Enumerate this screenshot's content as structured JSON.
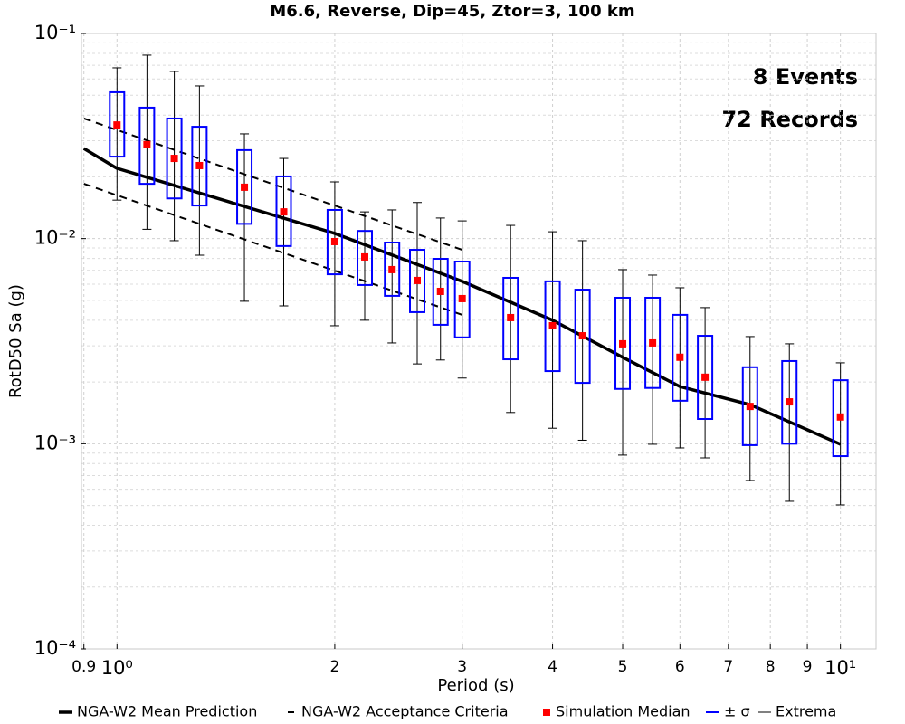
{
  "chart_data": {
    "type": "box",
    "title": "M6.6, Reverse, Dip=45, Ztor=3, 100 km",
    "xlabel": "Period (s)",
    "ylabel": "RotD50 Sa (g)",
    "xscale": "log",
    "yscale": "log",
    "grid": true,
    "xlim": [
      0.893,
      11.2
    ],
    "ylim": [
      0.0001,
      0.1
    ],
    "xticks": [
      0.9,
      {
        "value": 1,
        "label": "10⁰"
      },
      2,
      3,
      4,
      5,
      6,
      7,
      8,
      9,
      {
        "value": 10,
        "label": "10¹"
      }
    ],
    "xtick_labels_shown": [
      {
        "value": 0.9,
        "label": "9"
      }
    ],
    "yticks": [
      {
        "value": 0.1,
        "label": "10⁻¹"
      },
      {
        "value": 0.01,
        "label": "10⁻²"
      },
      {
        "value": 0.001,
        "label": "10⁻³"
      },
      {
        "value": 0.0001,
        "label": "10⁻⁴"
      }
    ],
    "yminorticks": [
      0.0002,
      0.0003,
      0.0004,
      0.0005,
      0.0006,
      0.0007,
      0.0008,
      0.0009,
      0.002,
      0.003,
      0.004,
      0.005,
      0.006,
      0.007,
      0.008,
      0.009,
      0.02,
      0.03,
      0.04,
      0.05,
      0.06,
      0.07,
      0.08,
      0.09
    ],
    "annotations": [
      "8 Events",
      "72 Records"
    ],
    "x": [
      1,
      1.1,
      1.2,
      1.3,
      1.5,
      1.7,
      2,
      2.2,
      2.4,
      2.6,
      2.8,
      3,
      3.5,
      4,
      4.4,
      5,
      5.5,
      6,
      6.5,
      7.5,
      8.5,
      10
    ],
    "series": [
      {
        "name": "NGA-W2 Mean Prediction",
        "color": "#000000",
        "x": [
          0.9,
          1,
          2,
          3,
          4,
          5,
          6,
          7.5,
          10
        ],
        "values": [
          0.0275,
          0.022,
          0.0106,
          0.00619,
          0.004,
          0.00264,
          0.0019,
          0.00155,
          0.000994
        ]
      },
      {
        "name": "NGA-W2 Acceptance Criteria",
        "color": "#000000",
        "x": [
          0.9,
          3
        ],
        "upper": [
          0.0385,
          0.00882
        ],
        "lower": [
          0.0185,
          0.00425
        ]
      },
      {
        "name": "Simulation Median",
        "color": "#ff0000",
        "values": [
          0.0358,
          0.0287,
          0.0246,
          0.0227,
          0.0178,
          0.0135,
          0.00967,
          0.00814,
          0.00706,
          0.00625,
          0.00553,
          0.0051,
          0.00412,
          0.00376,
          0.00336,
          0.00307,
          0.0031,
          0.00264,
          0.00211,
          0.00152,
          0.0016,
          0.00135
        ]
      },
      {
        "name": "± σ",
        "color": "#0000ff",
        "upper": [
          0.0517,
          0.0435,
          0.0385,
          0.0351,
          0.027,
          0.0201,
          0.0138,
          0.0109,
          0.00957,
          0.00882,
          0.00797,
          0.00773,
          0.00644,
          0.00619,
          0.00564,
          0.00515,
          0.00515,
          0.00425,
          0.00336,
          0.00236,
          0.00253,
          0.00204
        ],
        "lower": [
          0.0251,
          0.0185,
          0.0157,
          0.0145,
          0.0118,
          0.0092,
          0.0067,
          0.00594,
          0.00526,
          0.00438,
          0.0038,
          0.0033,
          0.00258,
          0.00226,
          0.00198,
          0.00185,
          0.00187,
          0.00162,
          0.00132,
          0.000984,
          0.001,
          0.00087
        ]
      },
      {
        "name": "Extrema",
        "color": "#000000",
        "upper": [
          0.068,
          0.0784,
          0.0653,
          0.0555,
          0.0324,
          0.0246,
          0.0189,
          0.0135,
          0.0138,
          0.015,
          0.0126,
          0.0122,
          0.0116,
          0.0108,
          0.00977,
          0.00706,
          0.00664,
          0.00576,
          0.00461,
          0.00333,
          0.00307,
          0.00248
        ],
        "lower": [
          0.0154,
          0.0111,
          0.00977,
          0.0083,
          0.00495,
          0.0047,
          0.00376,
          0.004,
          0.0031,
          0.00245,
          0.00256,
          0.00209,
          0.00142,
          0.00119,
          0.00104,
          0.00088,
          0.000994,
          0.000954,
          0.000853,
          0.000662,
          0.000524,
          0.000503
        ]
      }
    ]
  }
}
